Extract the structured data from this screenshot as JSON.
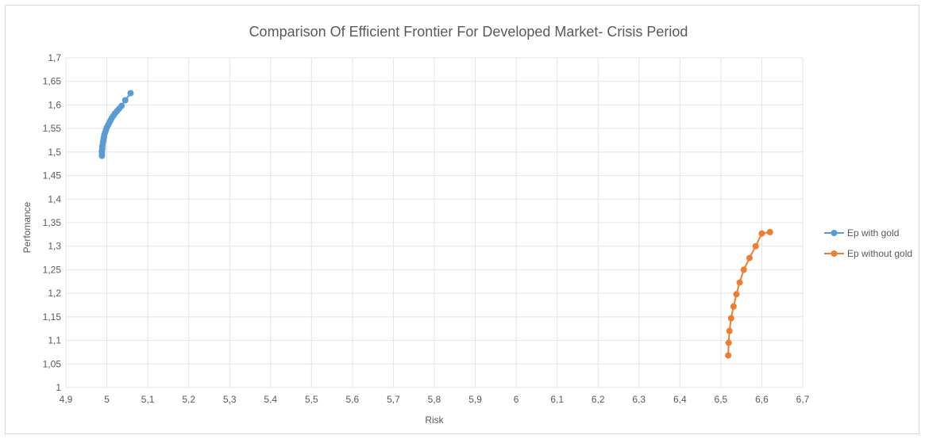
{
  "chart_data": {
    "type": "scatter",
    "title": "Comparison Of Efficient Frontier For Developed Market- Crisis Period",
    "xlabel": "Risk",
    "ylabel": "Perfomance",
    "xlim": [
      4.9,
      6.7
    ],
    "ylim": [
      1,
      1.7
    ],
    "x_ticks": [
      "4,9",
      "5",
      "5,1",
      "5,2",
      "5,3",
      "5,4",
      "5,5",
      "5,6",
      "5,7",
      "5,8",
      "5,9",
      "6",
      "6,1",
      "6,2",
      "6,3",
      "6,4",
      "6,5",
      "6,6",
      "6,7"
    ],
    "y_ticks": [
      "1",
      "1,05",
      "1,1",
      "1,15",
      "1,2",
      "1,25",
      "1,3",
      "1,35",
      "1,4",
      "1,45",
      "1,5",
      "1,55",
      "1,6",
      "1,65",
      "1,7"
    ],
    "grid": true,
    "legend_position": "right",
    "series": [
      {
        "name": "Ep with gold",
        "color": "#5b9bd5",
        "x": [
          4.988,
          4.988,
          4.988,
          4.989,
          4.989,
          4.99,
          4.991,
          4.992,
          4.993,
          4.994,
          4.996,
          4.998,
          5.0,
          5.003,
          5.006,
          5.009,
          5.012,
          5.016,
          5.02,
          5.025,
          5.03,
          5.036,
          5.045,
          5.058
        ],
        "y": [
          1.492,
          1.497,
          1.502,
          1.507,
          1.512,
          1.517,
          1.522,
          1.527,
          1.532,
          1.537,
          1.542,
          1.547,
          1.552,
          1.557,
          1.562,
          1.567,
          1.572,
          1.577,
          1.582,
          1.587,
          1.592,
          1.598,
          1.61,
          1.625
        ]
      },
      {
        "name": "Ep without gold",
        "color": "#ed7d31",
        "x": [
          6.518,
          6.519,
          6.521,
          6.525,
          6.531,
          6.538,
          6.546,
          6.556,
          6.57,
          6.585,
          6.6,
          6.62
        ],
        "y": [
          1.068,
          1.095,
          1.12,
          1.147,
          1.172,
          1.198,
          1.223,
          1.25,
          1.275,
          1.3,
          1.327,
          1.33
        ]
      }
    ]
  }
}
